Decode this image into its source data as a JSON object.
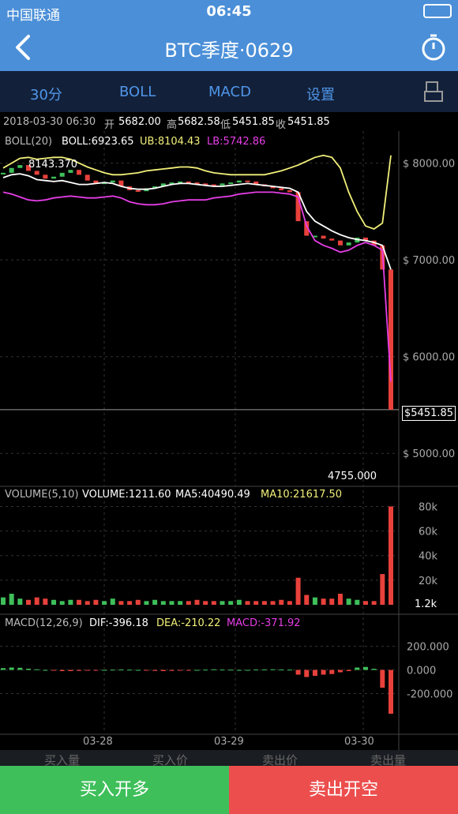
{
  "status": {
    "carrier": "中国联通",
    "time": "06:45"
  },
  "nav": {
    "title": "BTC季度·0629"
  },
  "toolbar": {
    "tabs": [
      "30分",
      "BOLL",
      "MACD",
      "设置"
    ]
  },
  "info": {
    "datetime": "2018-03-30 06:30",
    "open_label": "开",
    "open": "5682.00",
    "high_label": "高",
    "high": "5682.58",
    "low_label": "低",
    "low": "5451.85",
    "close_label": "收",
    "close": "5451.85"
  },
  "boll": {
    "name": "BOLL(20)",
    "mid": "BOLL:6923.65",
    "ub": "UB:8104.43",
    "lb": "LB:5742.86",
    "max_marker": "8143.370",
    "min_marker": "4755.000",
    "current_price": "$5451.85"
  },
  "volume": {
    "name": "VOLUME(5,10)",
    "value": "VOLUME:1211.60",
    "ma5": "MA5:40490.49",
    "ma10": "MA10:21617.50",
    "current_marker": "1.2k"
  },
  "macd": {
    "name": "MACD(12,26,9)",
    "dif": "DIF:-396.18",
    "dea": "DEA:-210.22",
    "macd": "MACD:-371.92"
  },
  "bottom": {
    "labels": [
      "买入量",
      "买入价",
      "卖出价",
      "卖出量"
    ]
  },
  "actions": {
    "buy": "买入开多",
    "sell": "卖出开空"
  },
  "colors": {
    "up": "#3fbf5a",
    "down": "#e8413c",
    "ub": "#f2f07a",
    "lb": "#e63ee6",
    "mid": "#ffffff",
    "nav": "#4a8fd8"
  },
  "chart_data": {
    "type": "candlestick",
    "price_axis": {
      "ticks": [
        "$ 8000.00",
        "$ 7000.00",
        "$ 6000.00",
        "$ 5000.00"
      ],
      "ylim": [
        4700,
        8250
      ]
    },
    "volume_axis": {
      "ticks": [
        "80k",
        "60k",
        "40k",
        "20k"
      ]
    },
    "macd_axis": {
      "ticks": [
        "200.000",
        "0.000",
        "-200.000"
      ]
    },
    "x_ticks": [
      "03-28",
      "03-29",
      "03-30"
    ],
    "ub_path": [
      7950,
      8000,
      8050,
      8060,
      8040,
      8050,
      8060,
      8060,
      8040,
      8000,
      7960,
      7930,
      7900,
      7880,
      7880,
      7890,
      7900,
      7920,
      7930,
      7940,
      7950,
      7960,
      7960,
      7950,
      7920,
      7900,
      7890,
      7880,
      7880,
      7880,
      7880,
      7880,
      7900,
      7920,
      7950,
      7980,
      8020,
      8060,
      8080,
      8060,
      7950,
      7700,
      7500,
      7350,
      7320,
      7380,
      8080
    ],
    "mid_path": [
      7850,
      7880,
      7890,
      7870,
      7830,
      7820,
      7810,
      7820,
      7800,
      7780,
      7780,
      7790,
      7800,
      7790,
      7760,
      7740,
      7730,
      7730,
      7740,
      7760,
      7780,
      7790,
      7790,
      7780,
      7770,
      7760,
      7760,
      7770,
      7780,
      7790,
      7780,
      7770,
      7760,
      7750,
      7740,
      7700,
      7500,
      7400,
      7350,
      7300,
      7260,
      7230,
      7210,
      7200,
      7180,
      7150,
      6900
    ],
    "lb_path": [
      7700,
      7680,
      7650,
      7620,
      7610,
      7620,
      7640,
      7650,
      7660,
      7650,
      7640,
      7640,
      7650,
      7660,
      7640,
      7600,
      7580,
      7570,
      7570,
      7580,
      7600,
      7610,
      7620,
      7620,
      7620,
      7640,
      7650,
      7660,
      7680,
      7690,
      7700,
      7700,
      7700,
      7690,
      7680,
      7650,
      7350,
      7200,
      7150,
      7120,
      7080,
      7100,
      7150,
      7180,
      7150,
      7100,
      5742
    ],
    "closes": [
      7900,
      7950,
      7980,
      7920,
      7880,
      7840,
      7860,
      7900,
      7930,
      7880,
      7820,
      7790,
      7800,
      7820,
      7760,
      7720,
      7710,
      7740,
      7760,
      7790,
      7800,
      7810,
      7800,
      7790,
      7780,
      7770,
      7790,
      7800,
      7820,
      7810,
      7780,
      7760,
      7740,
      7720,
      7700,
      7400,
      7250,
      7250,
      7220,
      7200,
      7150,
      7180,
      7230,
      7200,
      7150,
      6900,
      5451
    ],
    "volumes": [
      6,
      9,
      5,
      4,
      6,
      5,
      4,
      3,
      4,
      4,
      3,
      4,
      3,
      5,
      3,
      3,
      4,
      3,
      4,
      3,
      3,
      3,
      3,
      4,
      3,
      3,
      3,
      3,
      4,
      3,
      3,
      3,
      3,
      4,
      3,
      22,
      8,
      6,
      5,
      5,
      9,
      5,
      4,
      3,
      3,
      25,
      80
    ],
    "macd_hist": [
      15,
      20,
      18,
      10,
      5,
      0,
      -5,
      -10,
      -10,
      -8,
      -5,
      -3,
      0,
      2,
      3,
      2,
      0,
      -5,
      -8,
      -10,
      -8,
      -5,
      -3,
      0,
      2,
      5,
      3,
      2,
      0,
      0,
      3,
      4,
      5,
      3,
      2,
      -40,
      -60,
      -50,
      -40,
      -35,
      -20,
      -10,
      20,
      25,
      10,
      -150,
      -370
    ]
  }
}
